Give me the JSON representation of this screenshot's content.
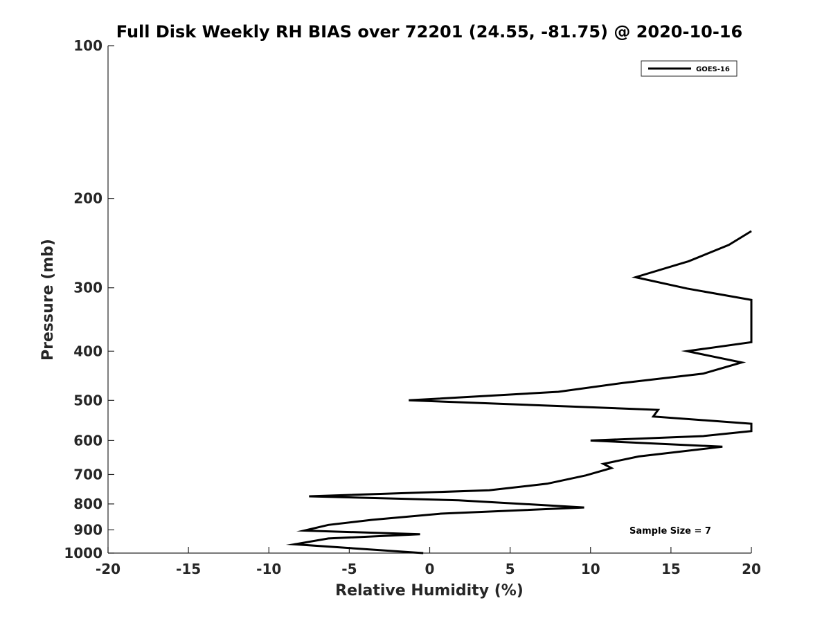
{
  "chart_data": {
    "type": "line",
    "title": "Full Disk Weekly RH BIAS over 72201 (24.55, -81.75) @ 2020-10-16",
    "xlabel": "Relative Humidity (%)",
    "ylabel": "Pressure (mb)",
    "xlim": [
      -20,
      20
    ],
    "ylim": [
      100,
      1000
    ],
    "y_scale": "log",
    "y_reversed": true,
    "grid": false,
    "legend_position": "top-right",
    "x_ticks": [
      -20,
      -15,
      -10,
      -5,
      0,
      5,
      10,
      15,
      20
    ],
    "x_tick_labels": [
      "-20",
      "-15",
      "-10",
      "-5",
      "0",
      "5",
      "10",
      "15",
      "20"
    ],
    "y_ticks": [
      100,
      200,
      300,
      400,
      500,
      600,
      700,
      800,
      900,
      1000
    ],
    "y_tick_labels": [
      "100",
      "200",
      "300",
      "400",
      "500",
      "600",
      "700",
      "800",
      "900",
      "1000"
    ],
    "annotation": "Sample Size = 7",
    "series": [
      {
        "name": "GOES-16",
        "color": "#000000",
        "x": [
          20,
          18.6,
          16.1,
          12.8,
          16.0,
          20,
          20,
          16.0,
          19.4,
          17.0,
          12.0,
          8.0,
          -1.3,
          14.2,
          13.9,
          20,
          20,
          17.0,
          10.0,
          18.2,
          13.0,
          10.8,
          11.3,
          9.7,
          7.3,
          3.7,
          -7.5,
          1.8,
          9.6,
          0.7,
          -3.6,
          -6.3,
          -7.8,
          -0.6,
          -6.3,
          -8.4,
          -0.4
        ],
        "y": [
          232,
          247,
          266,
          286,
          301,
          317,
          384,
          400,
          421,
          443,
          462,
          481,
          500,
          522,
          538,
          556,
          575,
          588,
          600,
          617,
          645,
          667,
          680,
          703,
          730,
          752,
          773,
          787,
          813,
          836,
          860,
          880,
          903,
          918,
          936,
          961,
          1000
        ]
      }
    ]
  }
}
